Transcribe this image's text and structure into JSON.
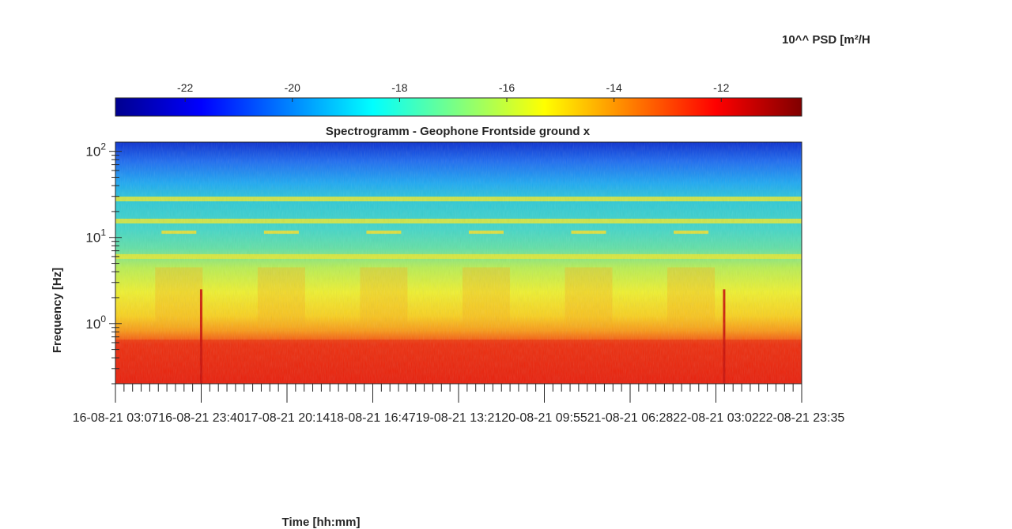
{
  "chart_data": {
    "type": "heatmap",
    "title": "Spectrogramm - Geophone Frontside ground x",
    "xlabel": "Time [hh:mm]",
    "ylabel": "Frequency [Hz]",
    "y_scale": "log",
    "y_range": [
      0.2,
      128
    ],
    "y_tick_labels": [
      {
        "base": "10",
        "exp": "0",
        "value": 1
      },
      {
        "base": "10",
        "exp": "1",
        "value": 10
      },
      {
        "base": "10",
        "exp": "2",
        "value": 100
      }
    ],
    "x_tick_labels": [
      "16-08-21 03:07",
      "16-08-21 23:40",
      "17-08-21 20:14",
      "18-08-21 16:47",
      "19-08-21 13:21",
      "20-08-21 09:55",
      "21-08-21 06:28",
      "22-08-21 03:02",
      "22-08-21 23:35"
    ],
    "x_range": [
      "16-08-21 03:07",
      "22-08-21 23:35"
    ],
    "colorbar": {
      "label": "10^^ PSD [m²/H",
      "range": [
        -23.3,
        -10.5
      ],
      "ticks": [
        -22,
        -20,
        -18,
        -16,
        -14,
        -12
      ],
      "tick_labels": [
        "-22",
        "-20",
        "-18",
        "-16",
        "-14",
        "-12"
      ],
      "colormap": "jet",
      "location": "top"
    },
    "features": {
      "constant_bands_hz": [
        6.0,
        15.5,
        28.0
      ],
      "intermittent_band_hz": 11.5,
      "red_band_below_hz": 0.65,
      "spikes": [
        "16-08-21 23:40",
        "22-08-21 05:00"
      ]
    }
  }
}
